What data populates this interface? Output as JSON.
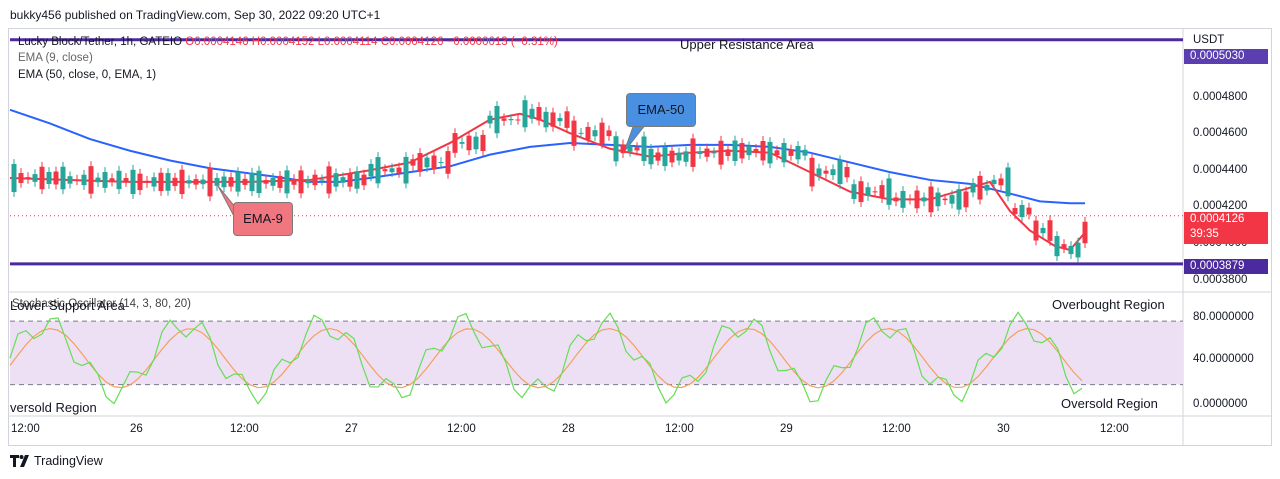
{
  "header": {
    "published": "bukky456 published on TradingView.com, Sep 30, 2022 09:20 UTC+1"
  },
  "legend": {
    "symbol": "Lucky Block/Tether, 1h, GATEIO",
    "ohlc": "O0.0004146 H0.0004152 L0.0004114 C0.0004126 −0.0000013 (−0.31%)",
    "ema9": "EMA (9, close)",
    "ema50": "EMA (50, close, 0, EMA, 1)",
    "stoch": "Stochastic Oscillator (14, 3, 80, 20)"
  },
  "annotations": {
    "upper": "Upper Resistance Area",
    "lower": "Lower Support Area",
    "ema50": "EMA-50",
    "ema9": "EMA-9",
    "overbought": "Overbought Region",
    "oversold_left": "versold Region",
    "oversold_right": "Oversold Region"
  },
  "price_axis": {
    "currency": "USDT",
    "ticks": [
      "0.0004800",
      "0.0004600",
      "0.0004400",
      "0.0004200",
      "0.0004000",
      "0.0003800"
    ],
    "resistance_label": "0.0005030",
    "last_price": "0.0004126",
    "countdown": "39:35",
    "support_label": "0.0003879"
  },
  "stoch_axis": {
    "ticks": [
      "80.0000000",
      "40.0000000",
      "0.0000000"
    ]
  },
  "time_axis": [
    "12:00",
    "26",
    "12:00",
    "27",
    "12:00",
    "28",
    "12:00",
    "29",
    "12:00",
    "30",
    "12:00"
  ],
  "brand": "TradingView",
  "colors": {
    "up": "#26a69a",
    "down": "#f23645",
    "ema9": "#f23645",
    "ema50": "#2962ff",
    "level": "#4a2a9c",
    "k": "#66dd55",
    "d": "#f5a05a",
    "band": "#ede0f5"
  },
  "chart_data": {
    "type": "candlestick",
    "title": "Lucky Block/Tether, 1h, GATEIO",
    "ylim": [
      0.000376,
      0.000507
    ],
    "levels": {
      "upper_resistance": 0.000503,
      "lower_support": 0.0003879
    },
    "last_close": 0.0004126,
    "ema50": [
      [
        0,
        0.000467
      ],
      [
        40,
        0.00046
      ],
      [
        80,
        0.000452
      ],
      [
        120,
        0.000446
      ],
      [
        160,
        0.000441
      ],
      [
        200,
        0.000437
      ],
      [
        230,
        0.000435
      ],
      [
        260,
        0.000433
      ],
      [
        300,
        0.00043
      ],
      [
        330,
        0.00043
      ],
      [
        360,
        0.000432
      ],
      [
        400,
        0.000435
      ],
      [
        440,
        0.000438
      ],
      [
        480,
        0.000444
      ],
      [
        520,
        0.000448
      ],
      [
        560,
        0.00045
      ],
      [
        600,
        0.000449
      ],
      [
        640,
        0.000448
      ],
      [
        680,
        0.000449
      ],
      [
        720,
        0.000449
      ],
      [
        760,
        0.000448
      ],
      [
        800,
        0.000445
      ],
      [
        840,
        0.00044
      ],
      [
        880,
        0.000435
      ],
      [
        920,
        0.000431
      ],
      [
        960,
        0.000429
      ],
      [
        1000,
        0.000424
      ],
      [
        1030,
        0.00042
      ],
      [
        1060,
        0.000419
      ],
      [
        1075,
        0.000419
      ]
    ],
    "ema9": [
      [
        0,
        0.000432
      ],
      [
        60,
        0.000431
      ],
      [
        120,
        0.00043
      ],
      [
        180,
        0.00043
      ],
      [
        240,
        0.00043
      ],
      [
        300,
        0.000431
      ],
      [
        360,
        0.000436
      ],
      [
        400,
        0.00044
      ],
      [
        440,
        0.00045
      ],
      [
        480,
        0.000462
      ],
      [
        510,
        0.000465
      ],
      [
        530,
        0.000462
      ],
      [
        560,
        0.000455
      ],
      [
        600,
        0.000447
      ],
      [
        640,
        0.000443
      ],
      [
        680,
        0.000445
      ],
      [
        720,
        0.000446
      ],
      [
        760,
        0.000445
      ],
      [
        800,
        0.000435
      ],
      [
        840,
        0.000425
      ],
      [
        880,
        0.000421
      ],
      [
        920,
        0.000421
      ],
      [
        960,
        0.000427
      ],
      [
        980,
        0.00043
      ],
      [
        1000,
        0.000415
      ],
      [
        1020,
        0.000405
      ],
      [
        1045,
        0.000397
      ],
      [
        1060,
        0.000395
      ],
      [
        1075,
        0.000404
      ]
    ],
    "stochastic": {
      "params": "14, 3, 80, 20",
      "upper_band": 80,
      "lower_band": 20,
      "ylim": [
        -4,
        100
      ]
    }
  }
}
